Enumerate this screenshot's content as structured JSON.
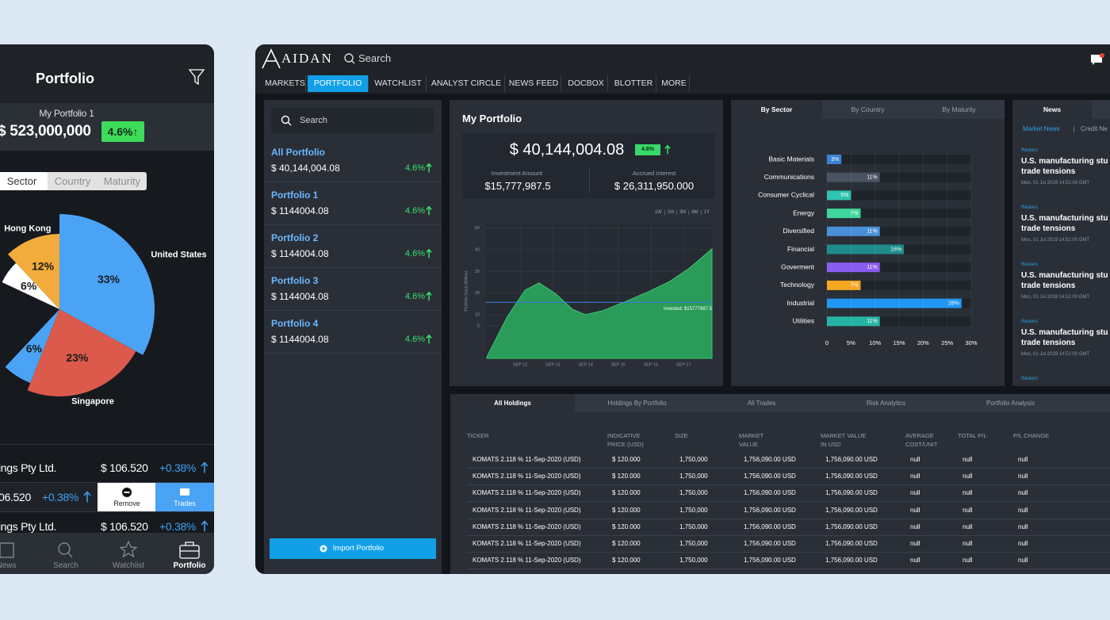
{
  "mobile": {
    "title": "Portfolio",
    "portfolio_name": "My Portfolio 1",
    "total": "$ 523,000,000",
    "change": "4.6%↑",
    "tabs": [
      "Sector",
      "Country",
      "Maturity"
    ],
    "pie": {
      "type": "pie",
      "labels": [
        "United States",
        "Singapore",
        null,
        null,
        "Hong Kong"
      ],
      "values": [
        33,
        23,
        6,
        6,
        12
      ],
      "value_labels": [
        "33%",
        "23%",
        "6%",
        "6%",
        "12%"
      ],
      "colors": [
        "#4aa3f5",
        "#db5a4c",
        "#4aa3f5",
        "#ffffff",
        "#f2ac3c"
      ]
    },
    "holdings": [
      {
        "name": "ings Pty Ltd.",
        "price": "$ 106.520",
        "change": "+0.38%"
      },
      {
        "price": "06.520",
        "change": "+0.38%"
      },
      {
        "name": "ings Pty Ltd.",
        "price": "$ 106.520",
        "change": "+0.38%"
      }
    ],
    "actions": [
      "Remove",
      "Trades"
    ],
    "nav": [
      "News",
      "Search",
      "Watchlist",
      "Portfolio"
    ]
  },
  "desktop": {
    "logo": "AIDAN",
    "search": "Search",
    "menu": [
      "MARKETS",
      "PORTFOLIO",
      "WATCHLIST",
      "ANALYST CIRCLE",
      "NEWS FEED",
      "DOCBOX",
      "BLOTTER",
      "MORE"
    ],
    "sidebar": {
      "search": "Search",
      "portfolios": [
        {
          "name": "All Portfolio",
          "value": "$ 40,144,004.08",
          "change": "4.6%"
        },
        {
          "name": "Portfolio 1",
          "value": "$ 1144004.08",
          "change": "4.6%"
        },
        {
          "name": "Portfolio 2",
          "value": "$ 1144004.08",
          "change": "4.6%"
        },
        {
          "name": "Portfolio 3",
          "value": "$ 1144004.08",
          "change": "4.6%"
        },
        {
          "name": "Portfolio 4",
          "value": "$ 1144004.08",
          "change": "4.6%"
        }
      ],
      "import": "Import Portfolio"
    },
    "my_portfolio": {
      "title": "My Portfolio",
      "total": "$ 40,144,004.08",
      "change": "4.6%",
      "investment_label": "Investment Amount",
      "investment": "$15,777,987.5",
      "accrued_label": "Accrued Interest",
      "accrued": "$ 26,311,950.000",
      "ranges": [
        "1W",
        "1M",
        "3M",
        "6M",
        "1Y"
      ],
      "chart": {
        "type": "area",
        "y_label": "Portfolio Value (Million)",
        "x": [
          10.98,
          11.6,
          12.15,
          12.58,
          13.07,
          13.6,
          13.99,
          14.52,
          15.25,
          15.93,
          16.58,
          17.19,
          17.87
        ],
        "values": [
          -9.3,
          9,
          21.4,
          24.7,
          19.9,
          12.6,
          10.1,
          11.9,
          16.3,
          20.7,
          25.4,
          31.6,
          40.4
        ],
        "color": "#2a9b58",
        "xlim": [
          10.93,
          17.87
        ],
        "ylim": [
          -10,
          52
        ],
        "yticks": [
          50,
          40,
          30,
          20,
          10,
          5
        ],
        "xticks": [
          {
            "value": 12,
            "label": "SEP 12"
          },
          {
            "value": 13,
            "label": "SEP 13"
          },
          {
            "value": 14,
            "label": "SEP 14"
          },
          {
            "value": 15,
            "label": "SEP 15"
          },
          {
            "value": 16,
            "label": "SEP 16"
          },
          {
            "value": 17,
            "label": "SEP 17"
          }
        ],
        "grid": true,
        "invested": 15.7779875,
        "invested_color": "#3a78d8",
        "invested_label": "Invested: $15777987.5"
      }
    },
    "sector": {
      "tabs": [
        "By Sector",
        "By Country",
        "By Maturity"
      ],
      "chart": {
        "type": "bar",
        "orientation": "horizontal",
        "categories": [
          "Basic Materials",
          "Communications",
          "Consumer Cyclical",
          "Energy",
          "Diversified",
          "Financial",
          "Goverment",
          "Technology",
          "Industrial",
          "Utilities"
        ],
        "values": [
          3,
          11,
          5,
          7,
          11,
          16,
          11,
          7,
          28,
          11
        ],
        "value_labels": [
          "3%",
          "11%",
          "5%",
          "7%",
          "11%",
          "16%",
          "11%",
          "7%",
          "28%",
          "11%"
        ],
        "colors": [
          "#3b82d6",
          "#4a5361",
          "#2fc3b0",
          "#3ed69a",
          "#4a90d9",
          "#1f8c8c",
          "#8a5cf0",
          "#f5a623",
          "#2196f3",
          "#26b3a6"
        ],
        "xlim": [
          0,
          30
        ],
        "xticks": [
          0,
          {
            "value": 5,
            "label": "5%"
          },
          {
            "value": 10,
            "label": "10%"
          },
          {
            "value": 15,
            "label": "15%"
          },
          {
            "value": 20,
            "label": "20%"
          },
          {
            "value": 25,
            "label": "25%"
          },
          {
            "value": 30,
            "label": "30%"
          }
        ],
        "grid": true
      }
    },
    "news": {
      "tab": "News",
      "filters": [
        "Market News",
        "Credit Ne"
      ],
      "items": [
        {
          "source": "Reuters",
          "title": [
            "U.S. manufacturing stu",
            "trade tensions"
          ],
          "date": "Mon, 01 Jul 2019 14:51:00 GMT"
        },
        {
          "source": "Reuters",
          "title": [
            "U.S. manufacturing stu",
            "trade tensions"
          ],
          "date": "Mon, 01 Jul 2019 14:51:00 GMT"
        },
        {
          "source": "Reuters",
          "title": [
            "U.S. manufacturing stu",
            "trade tensions"
          ],
          "date": "Mon, 01 Jul 2019 14:51:00 GMT"
        },
        {
          "source": "Reuters",
          "title": [
            "U.S. manufacturing stu",
            "trade tensions"
          ],
          "date": "Mon, 01 Jul 2019 14:51:00 GMT"
        },
        {
          "source": "Reuters"
        }
      ]
    },
    "holdings": {
      "tabs": [
        "All Holdings",
        "Holdings By Portfolio",
        "All Trades",
        "Risk Analytics",
        "Portfolio Analysis"
      ],
      "columns": [
        [
          "TICKER"
        ],
        [
          "INDICATIVE",
          "PRICE (USD)"
        ],
        [
          "SIZE"
        ],
        [
          "MARKET",
          "VALUE"
        ],
        [
          "MARKET VALUE",
          "IN USD"
        ],
        [
          "AVERAGE",
          "COST/UNIT"
        ],
        [
          "TOTAL P/L"
        ],
        [
          "P/L CHANGE"
        ]
      ],
      "rows": [
        [
          "KOMATS 2.118 % 11-Sep-2020 (USD)",
          "$ 120.000",
          "1,750,000",
          "1,756,090.00 USD",
          "1,756,090.00 USD",
          "null",
          "null",
          "null"
        ],
        [
          "KOMATS 2.118 % 11-Sep-2020 (USD)",
          "$ 120.000",
          "1,750,000",
          "1,756,090.00 USD",
          "1,756,090.00 USD",
          "null",
          "null",
          "null"
        ],
        [
          "KOMATS 2.118 % 11-Sep-2020 (USD)",
          "$ 120.000",
          "1,750,000",
          "1,756,090.00 USD",
          "1,756,090.00 USD",
          "null",
          "null",
          "null"
        ],
        [
          "KOMATS 2.118 % 11-Sep-2020 (USD)",
          "$ 120.000",
          "1,750,000",
          "1,756,090.00 USD",
          "1,756,090.00 USD",
          "null",
          "null",
          "null"
        ],
        [
          "KOMATS 2.118 % 11-Sep-2020 (USD)",
          "$ 120.000",
          "1,750,000",
          "1,756,090.00 USD",
          "1,756,090.00 USD",
          "null",
          "null",
          "null"
        ],
        [
          "KOMATS 2.118 % 11-Sep-2020 (USD)",
          "$ 120.000",
          "1,750,000",
          "1,756,090.00 USD",
          "1,756,090.00 USD",
          "null",
          "null",
          "null"
        ],
        [
          "KOMATS 2.118 % 11-Sep-2020 (USD)",
          "$ 120.000",
          "1,750,000",
          "1,756,090.00 USD",
          "1,756,090.00 USD",
          "null",
          "null",
          "null"
        ]
      ]
    }
  }
}
